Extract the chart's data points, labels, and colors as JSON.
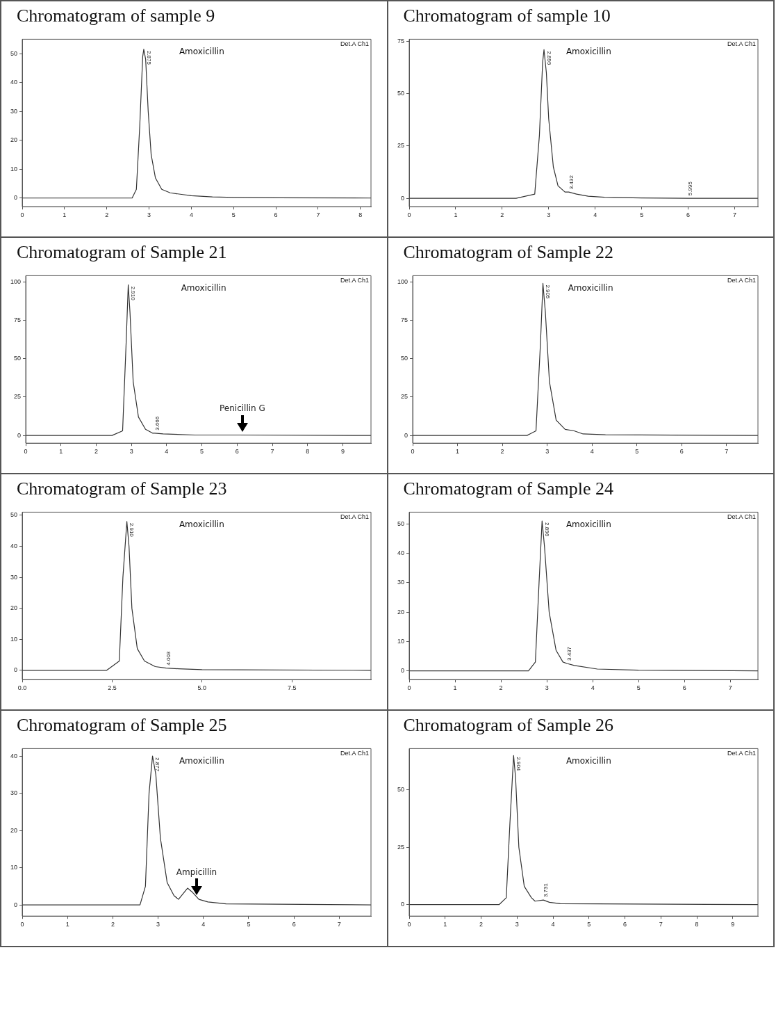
{
  "chart_data": [
    {
      "type": "line",
      "title": "Chromatogram of sample 9",
      "x": [
        0,
        2.6,
        2.7,
        2.78,
        2.85,
        2.875,
        2.92,
        2.98,
        3.05,
        3.15,
        3.3,
        3.5,
        3.8,
        4.0,
        4.5,
        5,
        6,
        8.25
      ],
      "values": [
        0,
        0,
        3,
        25,
        49,
        51.5,
        48,
        30,
        15,
        7,
        3,
        1.8,
        1.2,
        0.8,
        0.4,
        0.2,
        0.1,
        0
      ],
      "color": "#333333",
      "xlim": [
        0,
        8.25
      ],
      "xticks": [
        0,
        1,
        2,
        3,
        4,
        5,
        6,
        7,
        8
      ],
      "ylim": [
        -3,
        55
      ],
      "yticks": [
        0,
        10,
        20,
        30,
        40,
        50
      ],
      "grid": false,
      "legend": false,
      "marker": "none",
      "annotations": [
        "Det.A Ch1",
        "Amoxicillin",
        {
          "text": "2.875",
          "x": 2.875,
          "y": 51.5
        }
      ]
    },
    {
      "type": "line",
      "title": "Chromatogram of sample 10",
      "x": [
        0,
        2.3,
        2.7,
        2.8,
        2.87,
        2.899,
        2.95,
        3.0,
        3.1,
        3.2,
        3.35,
        3.432,
        3.6,
        3.85,
        4.2,
        5,
        5.995,
        7.5
      ],
      "values": [
        0,
        0,
        2,
        30,
        65,
        71,
        60,
        38,
        15,
        6,
        3,
        3,
        2,
        1,
        0.5,
        0.2,
        0,
        0
      ],
      "color": "#333333",
      "xlim": [
        0,
        7.5
      ],
      "xticks": [
        0,
        1,
        2,
        3,
        4,
        5,
        6,
        7
      ],
      "ylim": [
        -4,
        76
      ],
      "yticks": [
        0,
        25,
        50,
        75
      ],
      "grid": false,
      "legend": false,
      "marker": "none",
      "annotations": [
        "Det.A Ch1",
        "Amoxicillin",
        {
          "text": "2.899",
          "x": 2.899,
          "y": 71
        },
        {
          "text": "3.432",
          "x": 3.432,
          "y": 3
        },
        {
          "text": "5.995",
          "x": 5.995,
          "y": 0
        }
      ]
    },
    {
      "type": "line",
      "title": "Chromatogram of Sample 21",
      "x": [
        0,
        2.45,
        2.75,
        2.85,
        2.91,
        2.96,
        3.05,
        3.2,
        3.4,
        3.6,
        3.666,
        3.9,
        4.8,
        6,
        9.8
      ],
      "values": [
        0,
        0,
        3,
        60,
        98,
        80,
        35,
        12,
        4,
        1.5,
        1.5,
        1,
        0.3,
        0.3,
        0
      ],
      "color": "#333333",
      "xlim": [
        0,
        9.8
      ],
      "xticks": [
        0,
        1,
        2,
        3,
        4,
        5,
        6,
        7,
        8,
        9
      ],
      "ylim": [
        -5,
        104
      ],
      "yticks": [
        0,
        25,
        50,
        75,
        100
      ],
      "grid": false,
      "legend": false,
      "marker": "none",
      "annotations": [
        "Det.A Ch1",
        "Amoxicillin",
        {
          "text": "2.910",
          "x": 2.91,
          "y": 98
        },
        {
          "text": "3.666",
          "x": 3.666,
          "y": 1.5
        },
        {
          "text": "Penicillin G",
          "x": 6.15,
          "y": 1
        }
      ]
    },
    {
      "type": "line",
      "title": "Chromatogram of Sample 22",
      "x": [
        0,
        2.55,
        2.75,
        2.85,
        2.905,
        2.96,
        3.05,
        3.2,
        3.4,
        3.6,
        3.8,
        4.3,
        7.7
      ],
      "values": [
        0,
        0,
        3,
        60,
        99,
        80,
        35,
        10,
        4,
        3,
        1,
        0.5,
        0
      ],
      "color": "#333333",
      "xlim": [
        0,
        7.7
      ],
      "xticks": [
        0,
        1,
        2,
        3,
        4,
        5,
        6,
        7
      ],
      "ylim": [
        -5,
        104
      ],
      "yticks": [
        0,
        25,
        50,
        75,
        100
      ],
      "grid": false,
      "legend": false,
      "marker": "none",
      "annotations": [
        "Det.A Ch1",
        "Amoxicillin",
        {
          "text": "2.905",
          "x": 2.905,
          "y": 99
        }
      ]
    },
    {
      "type": "line",
      "title": "Chromatogram of Sample 23",
      "x": [
        0,
        2.35,
        2.7,
        2.8,
        2.91,
        2.97,
        3.05,
        3.2,
        3.4,
        3.7,
        4.003,
        4.35,
        5,
        9.7
      ],
      "values": [
        0,
        0,
        3,
        30,
        48,
        40,
        20,
        7,
        3,
        1.2,
        0.7,
        0.5,
        0.2,
        0
      ],
      "color": "#333333",
      "xlim": [
        0,
        9.7
      ],
      "xticks": [
        {
          "value": 0,
          "label": "0.0"
        },
        {
          "value": 2.5,
          "label": "2.5"
        },
        {
          "value": 5,
          "label": "5.0"
        },
        {
          "value": 7.5,
          "label": "7.5"
        }
      ],
      "ylim": [
        -3,
        51
      ],
      "yticks": [
        0,
        10,
        20,
        30,
        40,
        50
      ],
      "grid": false,
      "legend": false,
      "marker": "none",
      "annotations": [
        "Det.A Ch1",
        "Amoxicillin",
        {
          "text": "2.910",
          "x": 2.91,
          "y": 48
        },
        {
          "text": "4.003",
          "x": 4.003,
          "y": 0.7
        }
      ]
    },
    {
      "type": "line",
      "title": "Chromatogram of Sample 24",
      "x": [
        0,
        2.6,
        2.75,
        2.83,
        2.896,
        2.95,
        3.05,
        3.2,
        3.35,
        3.437,
        3.6,
        4.1,
        5,
        7.6
      ],
      "values": [
        0,
        0,
        3,
        30,
        51,
        42,
        20,
        7,
        3,
        2.5,
        1.8,
        0.6,
        0.2,
        0
      ],
      "color": "#333333",
      "xlim": [
        0,
        7.6
      ],
      "xticks": [
        0,
        1,
        2,
        3,
        4,
        5,
        6,
        7
      ],
      "ylim": [
        -3,
        54
      ],
      "yticks": [
        0,
        10,
        20,
        30,
        40,
        50
      ],
      "grid": false,
      "legend": false,
      "marker": "none",
      "annotations": [
        "Det.A Ch1",
        "Amoxicillin",
        {
          "text": "2.896",
          "x": 2.896,
          "y": 51
        },
        {
          "text": "3.437",
          "x": 3.437,
          "y": 2.5
        }
      ]
    },
    {
      "type": "line",
      "title": "Chromatogram of Sample 25",
      "x": [
        0,
        2.6,
        2.72,
        2.8,
        2.877,
        2.95,
        3.05,
        3.2,
        3.35,
        3.45,
        3.55,
        3.65,
        3.75,
        3.9,
        4.1,
        4.5,
        7.7
      ],
      "values": [
        0,
        0,
        5,
        30,
        40,
        35,
        18,
        6,
        2.5,
        1.5,
        3,
        4.5,
        3.5,
        1.5,
        0.8,
        0.3,
        0
      ],
      "color": "#333333",
      "xlim": [
        0,
        7.7
      ],
      "xticks": [
        0,
        1,
        2,
        3,
        4,
        5,
        6,
        7
      ],
      "ylim": [
        -3,
        42
      ],
      "yticks": [
        0,
        10,
        20,
        30,
        40
      ],
      "grid": false,
      "legend": false,
      "marker": "none",
      "annotations": [
        "Det.A Ch1",
        "Amoxicillin",
        {
          "text": "2.877",
          "x": 2.877,
          "y": 40
        },
        {
          "text": "Ampicillin",
          "x": 3.85,
          "y": 2
        }
      ]
    },
    {
      "type": "line",
      "title": "Chromatogram of Sample 26",
      "x": [
        0,
        2.5,
        2.7,
        2.8,
        2.904,
        2.96,
        3.05,
        3.2,
        3.4,
        3.5,
        3.731,
        3.9,
        4.2,
        9.7
      ],
      "values": [
        0,
        0,
        3,
        35,
        65,
        55,
        25,
        8,
        3,
        1.5,
        2,
        1,
        0.4,
        0
      ],
      "color": "#333333",
      "xlim": [
        0,
        9.7
      ],
      "xticks": [
        0,
        1,
        2,
        3,
        4,
        5,
        6,
        7,
        8,
        9
      ],
      "ylim": [
        -5,
        68
      ],
      "yticks": [
        0,
        25,
        50
      ],
      "grid": false,
      "legend": false,
      "marker": "none",
      "annotations": [
        "Det.A Ch1",
        "Amoxicillin",
        {
          "text": "2.904",
          "x": 2.904,
          "y": 65
        },
        {
          "text": "3.731",
          "x": 3.731,
          "y": 2
        }
      ]
    }
  ]
}
